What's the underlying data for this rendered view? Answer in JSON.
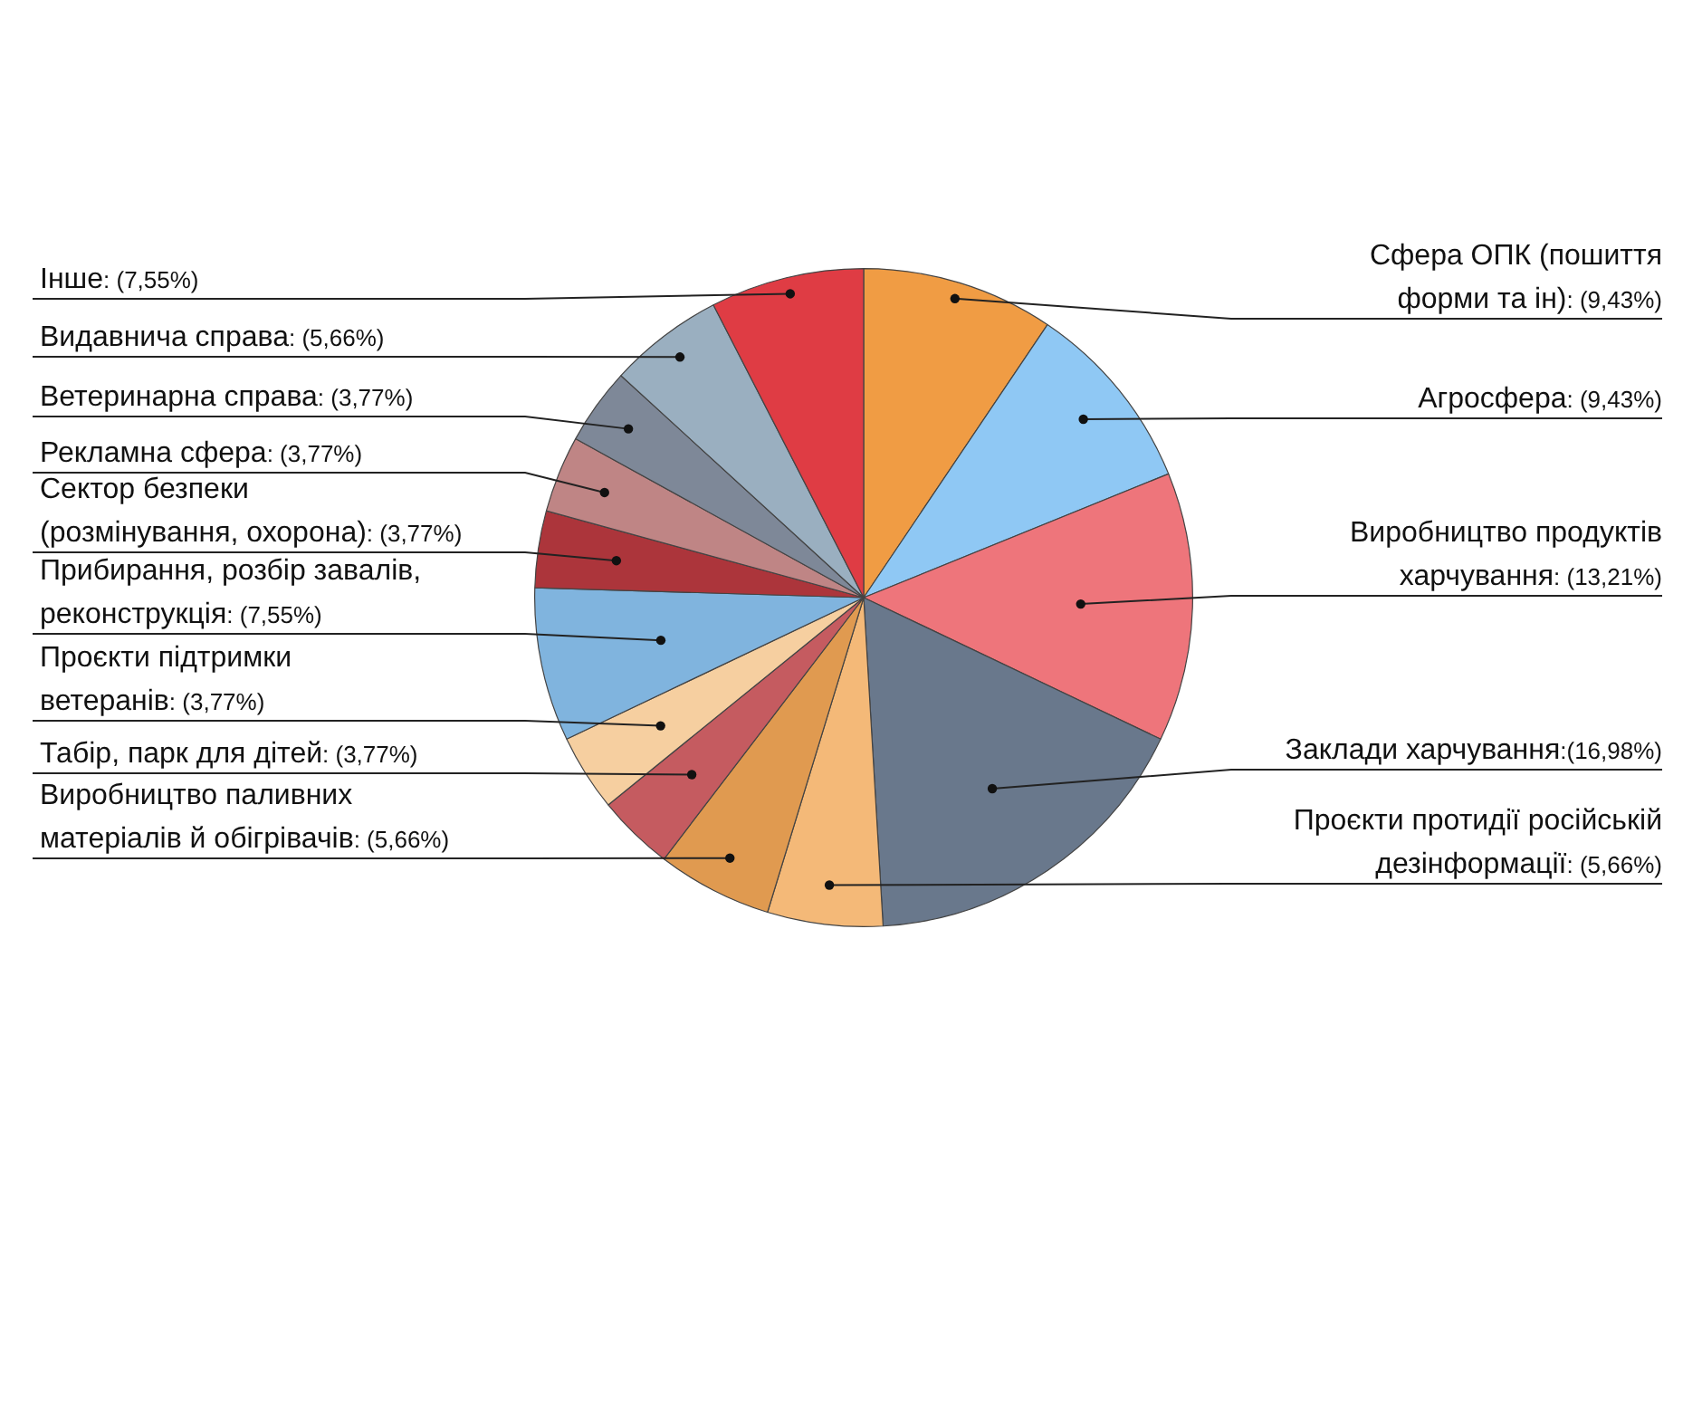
{
  "chart_data": {
    "type": "pie",
    "categories": [
      "Сфера ОПК (пошиття\nформи та ін)",
      "Агросфера",
      "Виробництво продуктів\nхарчування",
      "Заклади харчування",
      "Проєкти протидії російській\nдезінформації",
      "Виробництво паливних\nматеріалів й обігрівачів",
      "Табір, парк для дітей",
      "Проєкти підтримки\nветеранів",
      "Прибирання, розбір завалів,\nреконструкція",
      "Сектор безпеки\n(розмінування, охорона)",
      "Рекламна сфера",
      "Ветеринарна справа",
      "Видавнича справа",
      "Інше"
    ],
    "values": [
      9.43,
      9.43,
      13.21,
      16.98,
      5.66,
      5.66,
      3.77,
      3.77,
      7.55,
      3.77,
      3.77,
      3.77,
      5.66,
      7.55
    ],
    "value_labels": [
      ": (9,43%)",
      ": (9,43%)",
      ": (13,21%)",
      ":(16,98%)",
      ": (5,66%)",
      ": (5,66%)",
      ": (3,77%)",
      ": (3,77%)",
      ": (7,55%)",
      ": (3,77%)",
      ": (3,77%)",
      ": (3,77%)",
      ": (5,66%)",
      ": (7,55%)"
    ],
    "colors": [
      "#f09c44",
      "#8fc8f4",
      "#ee757b",
      "#69788c",
      "#f4b978",
      "#e09a50",
      "#c55b60",
      "#f6cfa0",
      "#80b4de",
      "#ac353b",
      "#bf8585",
      "#7e8898",
      "#9aafc0",
      "#df3c44"
    ],
    "legend": false
  }
}
